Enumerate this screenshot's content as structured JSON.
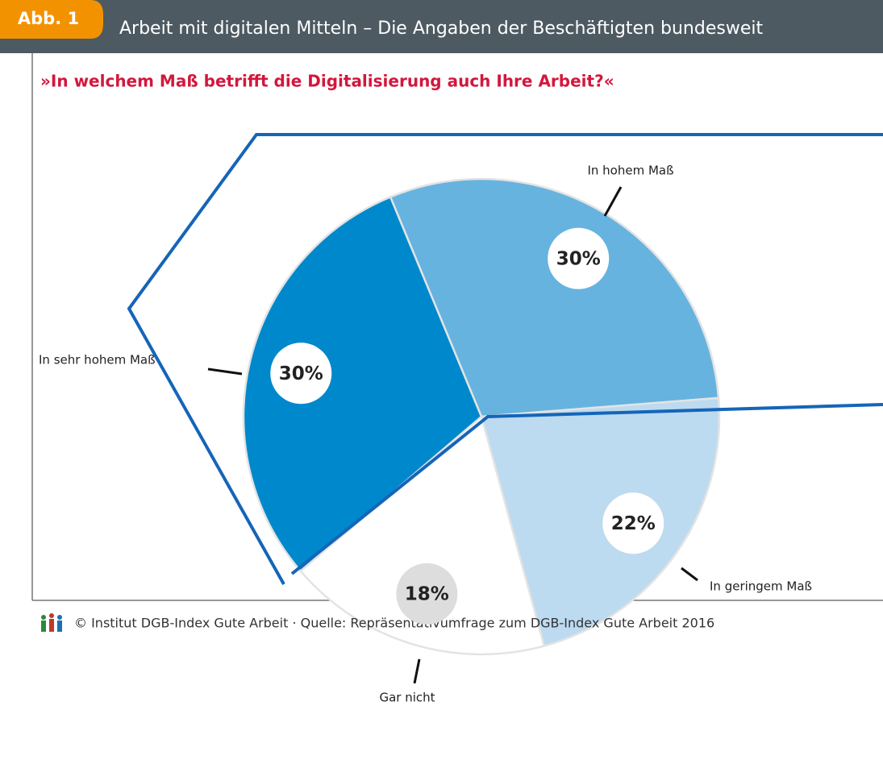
{
  "chart_data": {
    "type": "pie",
    "figure_label": "Abb. 1",
    "title": "Arbeit mit digitalen Mitteln – Die Angaben der Beschäftigten bundesweit",
    "subtitle": "»In welchem Maß betrifft die Digitalisierung auch Ihre Arbeit?«",
    "categories": [
      "In hohem Maß",
      "In geringem Maß",
      "Gar nicht",
      "In sehr hohem Maß"
    ],
    "values": [
      30,
      22,
      18,
      30
    ],
    "value_labels": [
      "30%",
      "22%",
      "18%",
      "30%"
    ],
    "colors": [
      "#66b3e0",
      "#bcdaf0",
      "#ffffff",
      "#0088cc"
    ],
    "source": "© Institut DGB-Index Gute Arbeit · Quelle: Repräsentativumfrage zum DGB-Index Gute Arbeit 2016"
  }
}
